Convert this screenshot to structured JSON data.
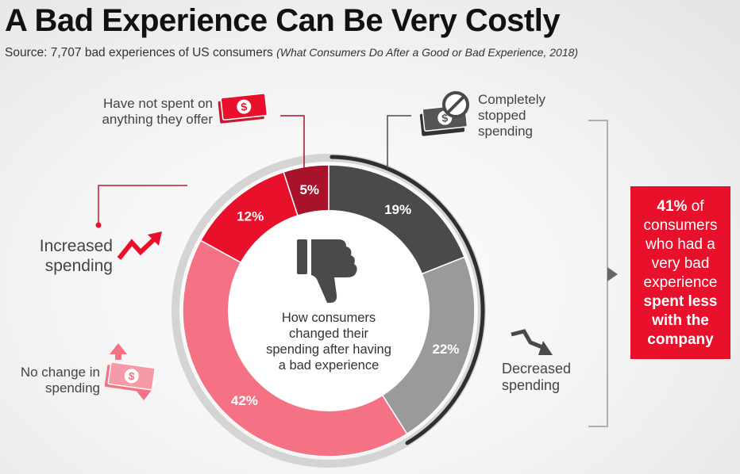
{
  "title": "A Bad Experience Can Be Very Costly",
  "source": {
    "text": "Source: 7,707 bad experiences of US consumers",
    "citation": "(What Consumers Do After a Good or Bad Experience, 2018)"
  },
  "center_text": [
    "How consumers",
    "changed their",
    "spending after having",
    "a bad experience"
  ],
  "labels": {
    "not_spent": [
      "Have not spent on",
      "anything they offer"
    ],
    "stopped": [
      "Completely",
      "stopped",
      "spending"
    ],
    "increased": [
      "Increased",
      "spending"
    ],
    "decreased": [
      "Decreased",
      "spending"
    ],
    "no_change": [
      "No change in",
      "spending"
    ]
  },
  "callout": {
    "pct": "41%",
    "of": " of",
    "lines": [
      "consumers",
      "who had a",
      "very bad",
      "experience"
    ],
    "bold_lines": [
      "spent less",
      "with the",
      "company"
    ]
  },
  "chart_data": {
    "type": "pie",
    "title": "",
    "slices": [
      {
        "name": "Completely stopped spending",
        "value": 19,
        "label": "19%",
        "color": "#4a4a4a"
      },
      {
        "name": "Decreased spending",
        "value": 22,
        "label": "22%",
        "color": "#9a9a9a"
      },
      {
        "name": "No change in spending",
        "value": 42,
        "label": "42%",
        "color": "#f47284"
      },
      {
        "name": "Increased spending",
        "value": 12,
        "label": "12%",
        "color": "#e8102a"
      },
      {
        "name": "Have not spent on anything they offer",
        "value": 5,
        "label": "5%",
        "color": "#a8122a"
      }
    ]
  },
  "colors": {
    "red": "#e8102a",
    "dark_red": "#a8122a",
    "pink": "#f47284",
    "dark_gray": "#4a4a4a",
    "gray": "#9a9a9a",
    "text_gray": "#444444"
  },
  "icons": [
    "money-icon",
    "no-symbol-icon",
    "thumbs-down-icon",
    "trend-up-icon",
    "trend-down-icon",
    "up-down-arrows-icon"
  ]
}
